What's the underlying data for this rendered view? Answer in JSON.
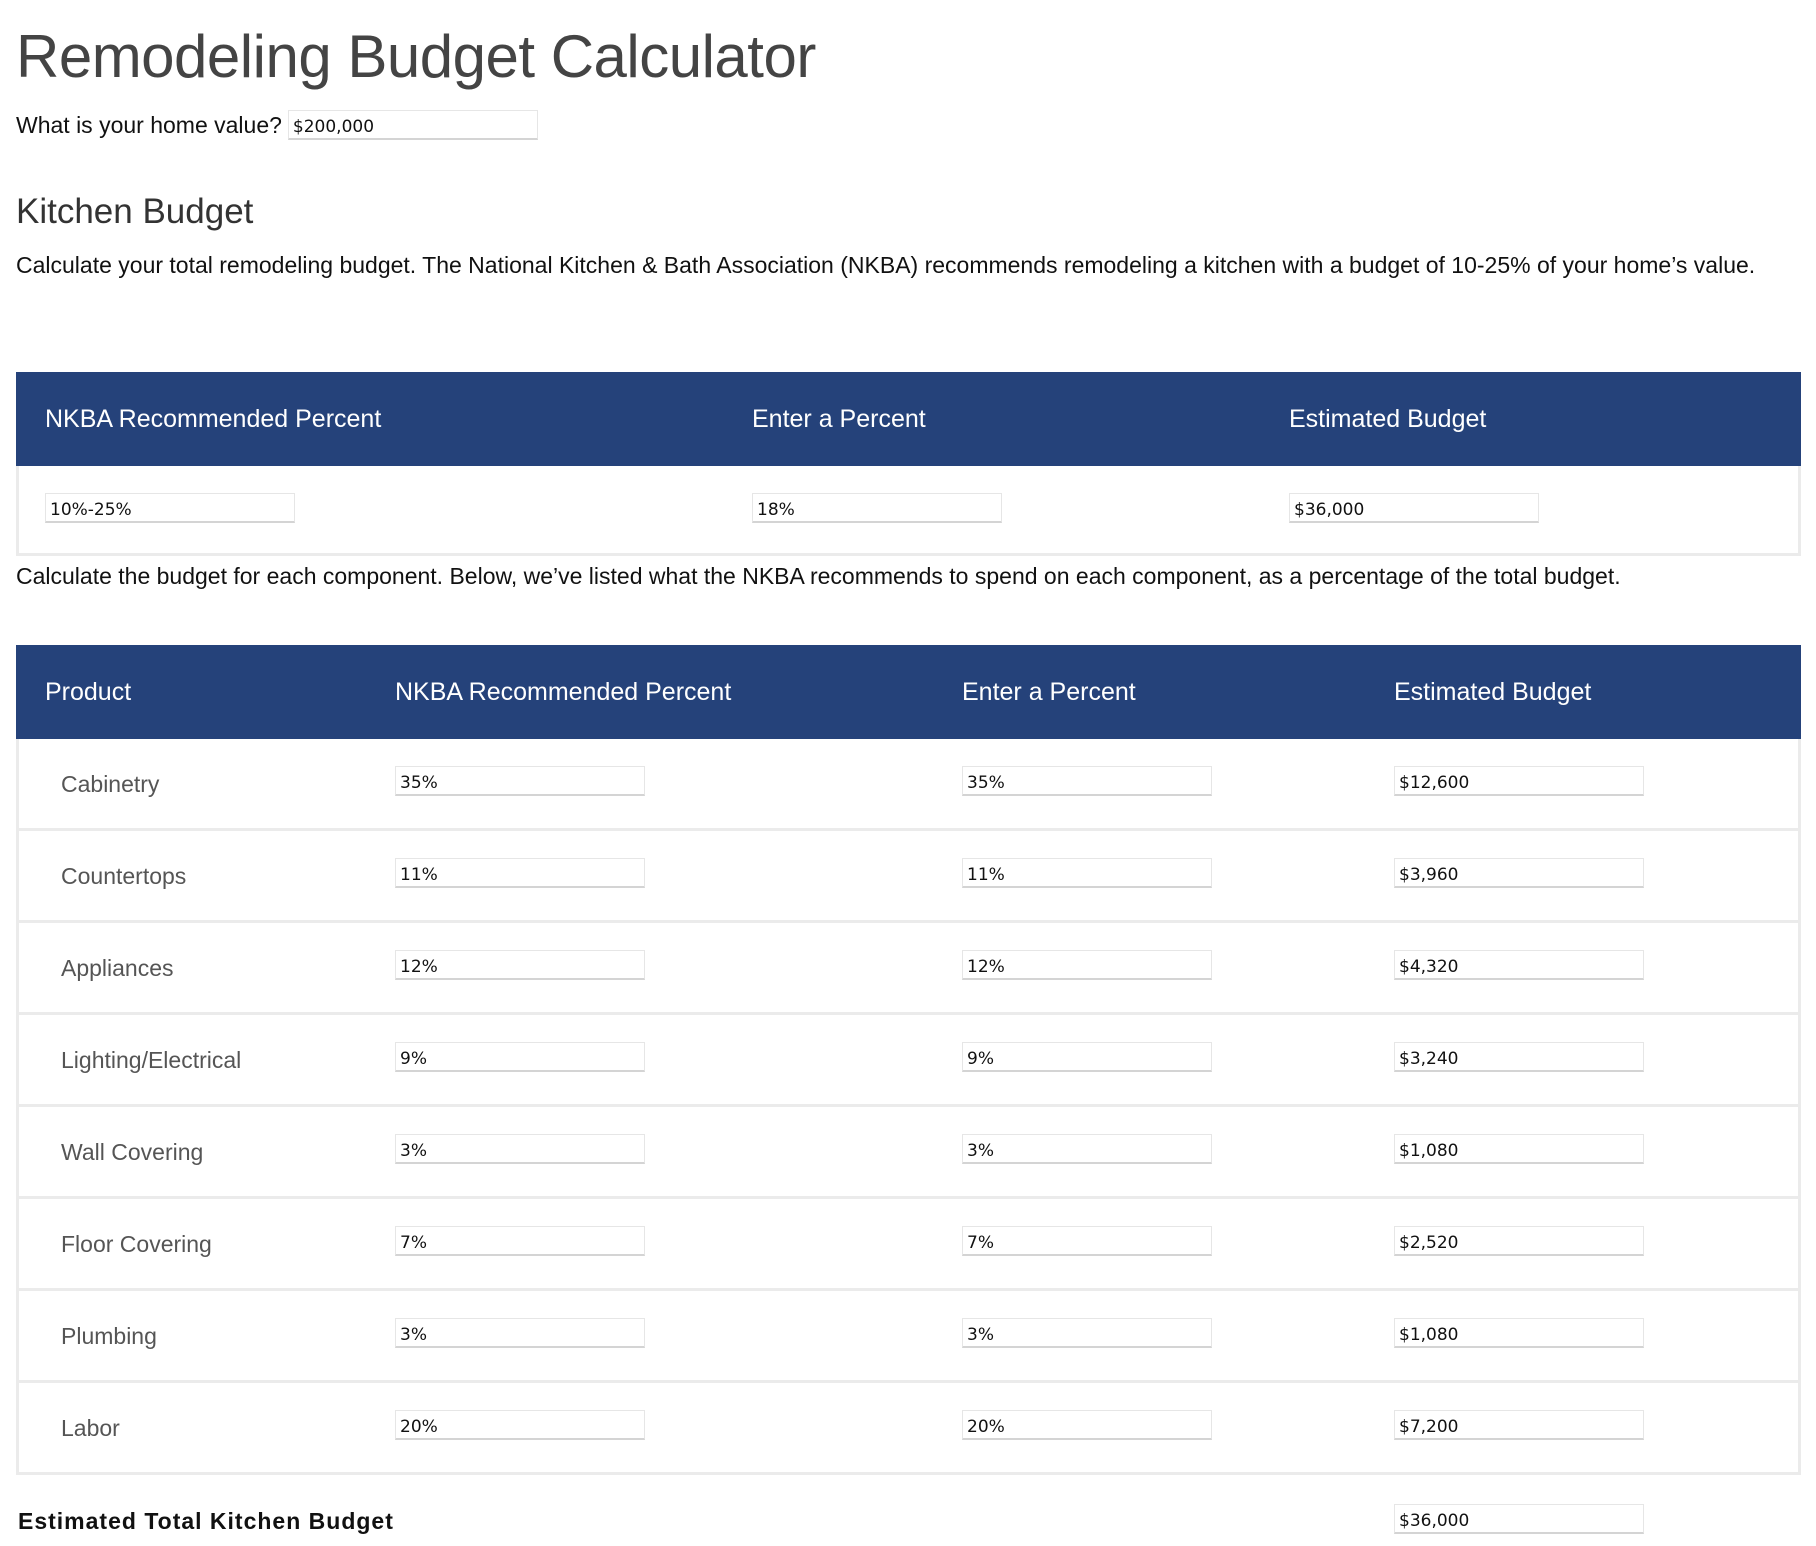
{
  "title": "Remodeling Budget Calculator",
  "home_value": {
    "label": "What is your home value?",
    "value": "$200,000"
  },
  "kitchen": {
    "heading": "Kitchen Budget",
    "intro": "Calculate your total remodeling budget. The National Kitchen & Bath Association (NKBA) recommends remodeling a kitchen with a budget of 10-25% of your home’s value.",
    "summary_table": {
      "headers": [
        "NKBA Recommended Percent",
        "Enter a Percent",
        "Estimated Budget"
      ],
      "row": {
        "recommended": "10%-25%",
        "entered": "18%",
        "budget": "$36,000"
      }
    },
    "components_intro": "Calculate the budget for each component. Below, we’ve listed what the NKBA recommends to spend on each component, as a percentage of the total budget.",
    "components_table": {
      "headers": [
        "Product",
        "NKBA Recommended Percent",
        "Enter a Percent",
        "Estimated Budget"
      ],
      "rows": [
        {
          "product": "Cabinetry",
          "recommended": "35%",
          "entered": "35%",
          "budget": "$12,600"
        },
        {
          "product": "Countertops",
          "recommended": "11%",
          "entered": "11%",
          "budget": "$3,960"
        },
        {
          "product": "Appliances",
          "recommended": "12%",
          "entered": "12%",
          "budget": "$4,320"
        },
        {
          "product": "Lighting/Electrical",
          "recommended": "9%",
          "entered": "9%",
          "budget": "$3,240"
        },
        {
          "product": "Wall Covering",
          "recommended": "3%",
          "entered": "3%",
          "budget": "$1,080"
        },
        {
          "product": "Floor Covering",
          "recommended": "7%",
          "entered": "7%",
          "budget": "$2,520"
        },
        {
          "product": "Plumbing",
          "recommended": "3%",
          "entered": "3%",
          "budget": "$1,080"
        },
        {
          "product": "Labor",
          "recommended": "20%",
          "entered": "20%",
          "budget": "$7,200"
        }
      ]
    },
    "total": {
      "label": "Estimated Total Kitchen Budget",
      "value": "$36,000"
    }
  },
  "colors": {
    "header_bg": "#25427a",
    "header_text": "#ffffff",
    "row_border": "#ebebeb"
  }
}
